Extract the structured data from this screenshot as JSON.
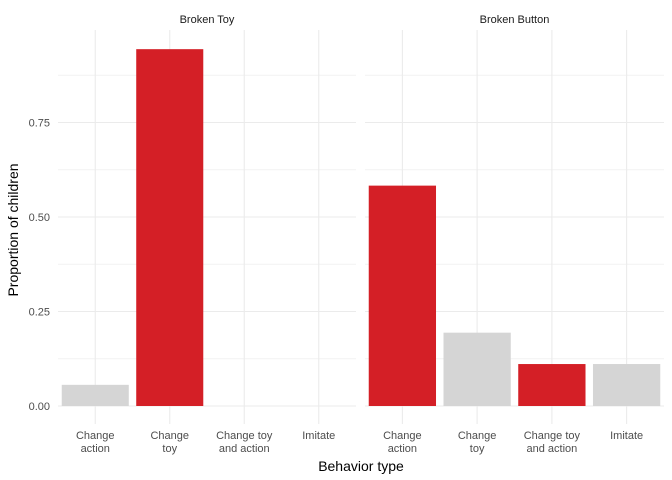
{
  "chart_data": {
    "type": "bar",
    "xlabel": "Behavior type",
    "ylabel": "Proportion of children",
    "ylim": [
      0,
      1
    ],
    "y_ticks": [
      "0.00",
      "0.25",
      "0.50",
      "0.75"
    ],
    "y_tick_values": [
      0,
      0.25,
      0.5,
      0.75
    ],
    "grid": true,
    "highlight_color": "#D41F26",
    "default_color": "#D5D5D5",
    "categories": [
      [
        "Change",
        "action"
      ],
      [
        "Change",
        "toy"
      ],
      [
        "Change toy",
        "and action"
      ],
      [
        "Imitate"
      ]
    ],
    "facets": [
      {
        "title": "Broken Toy",
        "values": [
          0.056,
          0.944,
          0,
          0
        ],
        "highlight": [
          false,
          true,
          false,
          false
        ]
      },
      {
        "title": "Broken Button",
        "values": [
          0.583,
          0.194,
          0.111,
          0.111
        ],
        "highlight": [
          true,
          false,
          true,
          false
        ]
      }
    ]
  }
}
